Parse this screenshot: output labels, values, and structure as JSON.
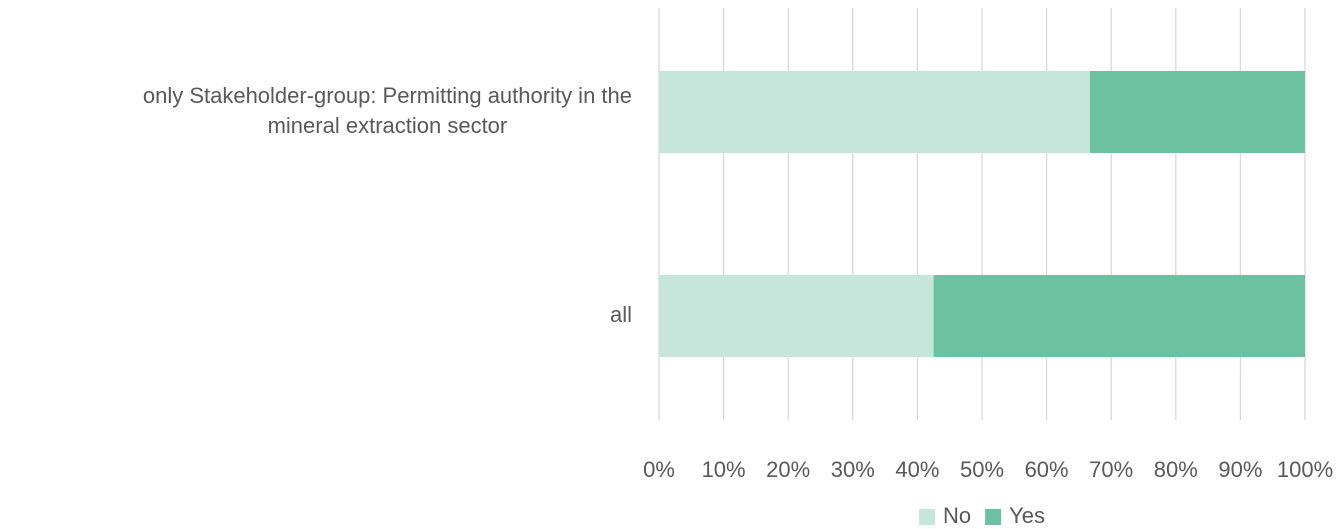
{
  "chart_data": {
    "type": "bar",
    "orientation": "horizontal",
    "stacked": "percent",
    "categories": [
      "only Stakeholder-group: Permitting authority in the mineral extraction sector",
      "all"
    ],
    "category_lines": [
      [
        "only Stakeholder-group: Permitting authority in the",
        "mineral extraction sector"
      ],
      [
        "all"
      ]
    ],
    "series": [
      {
        "name": "No",
        "values": [
          66.7,
          42.5
        ],
        "color": "#c6e6dc"
      },
      {
        "name": "Yes",
        "values": [
          33.3,
          57.5
        ],
        "color": "#6cc1a2"
      }
    ],
    "x_ticks": [
      "0%",
      "10%",
      "20%",
      "30%",
      "40%",
      "50%",
      "60%",
      "70%",
      "80%",
      "90%",
      "100%"
    ],
    "xlim": [
      0,
      100
    ],
    "grid": true,
    "grid_color": "#d9d9d9",
    "legend_position": "bottom",
    "title": "",
    "xlabel": "",
    "ylabel": ""
  }
}
